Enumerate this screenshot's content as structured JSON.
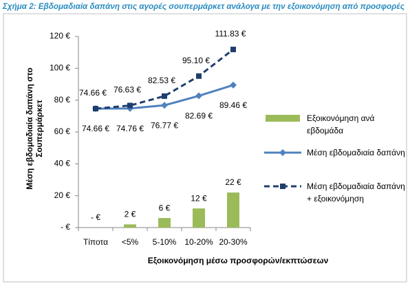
{
  "chart_data": {
    "type": "bar-line",
    "title": "Σχήμα 2: Εβδομαδιαία δαπάνη στις αγορές σουπερμάρκετ ανάλογα με την εξοικονόμηση από προσφορές",
    "y_label": "Μέση εβδομαδιαία δαπάνη στο Σουπερμάρκετ",
    "x_label": "Εξοικονόμηση μέσω προσφορών/εκπτώσεων",
    "categories": [
      "Τίποτα",
      "<5%",
      "5-10%",
      "10-20%",
      "20-30%"
    ],
    "series": [
      {
        "name": "Εξοικονόμηση ανά εβδομάδα",
        "type": "bar",
        "color": "#9bbb59",
        "values": [
          0,
          2,
          6,
          12,
          22
        ],
        "value_labels": [
          "-  €",
          "2 €",
          "6 €",
          "12 €",
          "22 €"
        ]
      },
      {
        "name": "Μέση εβδομαδιαία δαπάνη",
        "type": "line",
        "marker": "diamond",
        "dashed": false,
        "color": "#4f81bd",
        "values": [
          74.66,
          74.76,
          76.77,
          82.69,
          89.46
        ],
        "value_labels": [
          "74.66 €",
          "74.76 €",
          "76.77 €",
          "82.69 €",
          "89.46 €"
        ],
        "label_position": "below"
      },
      {
        "name": "Μέση εβδομαδιαία δαπάνη + εξοικονόμηση",
        "type": "line",
        "marker": "square",
        "dashed": true,
        "color": "#1f3d6e",
        "values": [
          74.66,
          76.63,
          82.53,
          95.1,
          111.83
        ],
        "value_labels": [
          "74.66 €",
          "76.63 €",
          "82.53 €",
          "95.10 €",
          "111.83 €"
        ],
        "label_position": "above"
      }
    ],
    "ylim": [
      0,
      120
    ],
    "yticks": [
      {
        "value": 0,
        "label": "-  €"
      },
      {
        "value": 20,
        "label": "20 €"
      },
      {
        "value": 40,
        "label": "40 €"
      },
      {
        "value": 60,
        "label": "60 €"
      },
      {
        "value": 80,
        "label": "80 €"
      },
      {
        "value": 100,
        "label": "100 €"
      },
      {
        "value": 120,
        "label": "120 €"
      }
    ],
    "grid": false,
    "legend": "right"
  }
}
